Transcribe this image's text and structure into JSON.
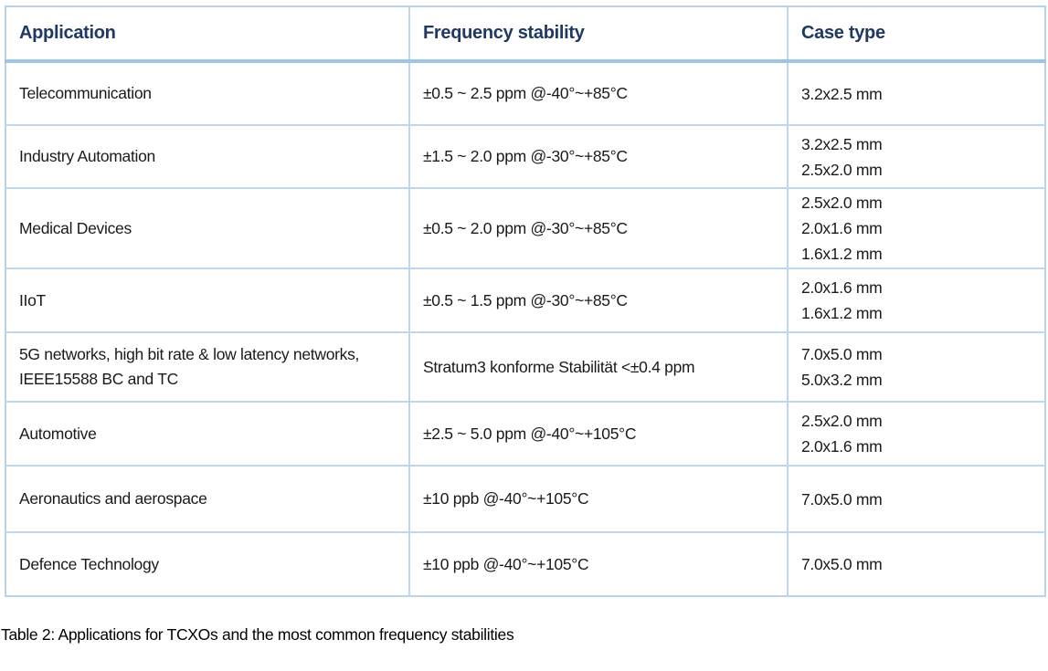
{
  "table": {
    "columns": [
      "Application",
      "Frequency stability",
      "Case type"
    ],
    "rows": [
      {
        "application": "Telecommunication",
        "frequency_stability": "±0.5 ~ 2.5 ppm @-40°~+85°C",
        "case_types": [
          "3.2x2.5 mm"
        ]
      },
      {
        "application": "Industry Automation",
        "frequency_stability": "±1.5 ~ 2.0 ppm @-30°~+85°C",
        "case_types": [
          "3.2x2.5 mm",
          "2.5x2.0 mm"
        ]
      },
      {
        "application": "Medical Devices",
        "frequency_stability": "±0.5 ~ 2.0 ppm @-30°~+85°C",
        "case_types": [
          "2.5x2.0 mm",
          "2.0x1.6 mm",
          "1.6x1.2 mm"
        ]
      },
      {
        "application": "IIoT",
        "frequency_stability": "±0.5 ~ 1.5 ppm @-30°~+85°C",
        "case_types": [
          "2.0x1.6 mm",
          "1.6x1.2 mm"
        ]
      },
      {
        "application": "5G networks, high bit rate & low latency networks, IEEE15588 BC and TC",
        "frequency_stability": "Stratum3 konforme Stabilität <±0.4 ppm",
        "case_types": [
          "7.0x5.0 mm",
          "5.0x3.2 mm"
        ]
      },
      {
        "application": "Automotive",
        "frequency_stability": "±2.5 ~ 5.0 ppm @-40°~+105°C",
        "case_types": [
          "2.5x2.0 mm",
          "2.0x1.6 mm"
        ]
      },
      {
        "application": "Aeronautics and aerospace",
        "frequency_stability": "±10 ppb @-40°~+105°C",
        "case_types": [
          "7.0x5.0 mm"
        ]
      },
      {
        "application": "Defence Technology",
        "frequency_stability": "±10 ppb @-40°~+105°C",
        "case_types": [
          "7.0x5.0 mm"
        ]
      }
    ],
    "caption": "Table 2: Applications for TCXOs and the most common frequency stabilities"
  },
  "colors": {
    "header_text": "#1f3864",
    "border_thin": "#bdd7ee",
    "border_header_rule": "#9dc3e6",
    "border_outer": "#b7d3ea",
    "body_text": "#1a1a1a"
  }
}
